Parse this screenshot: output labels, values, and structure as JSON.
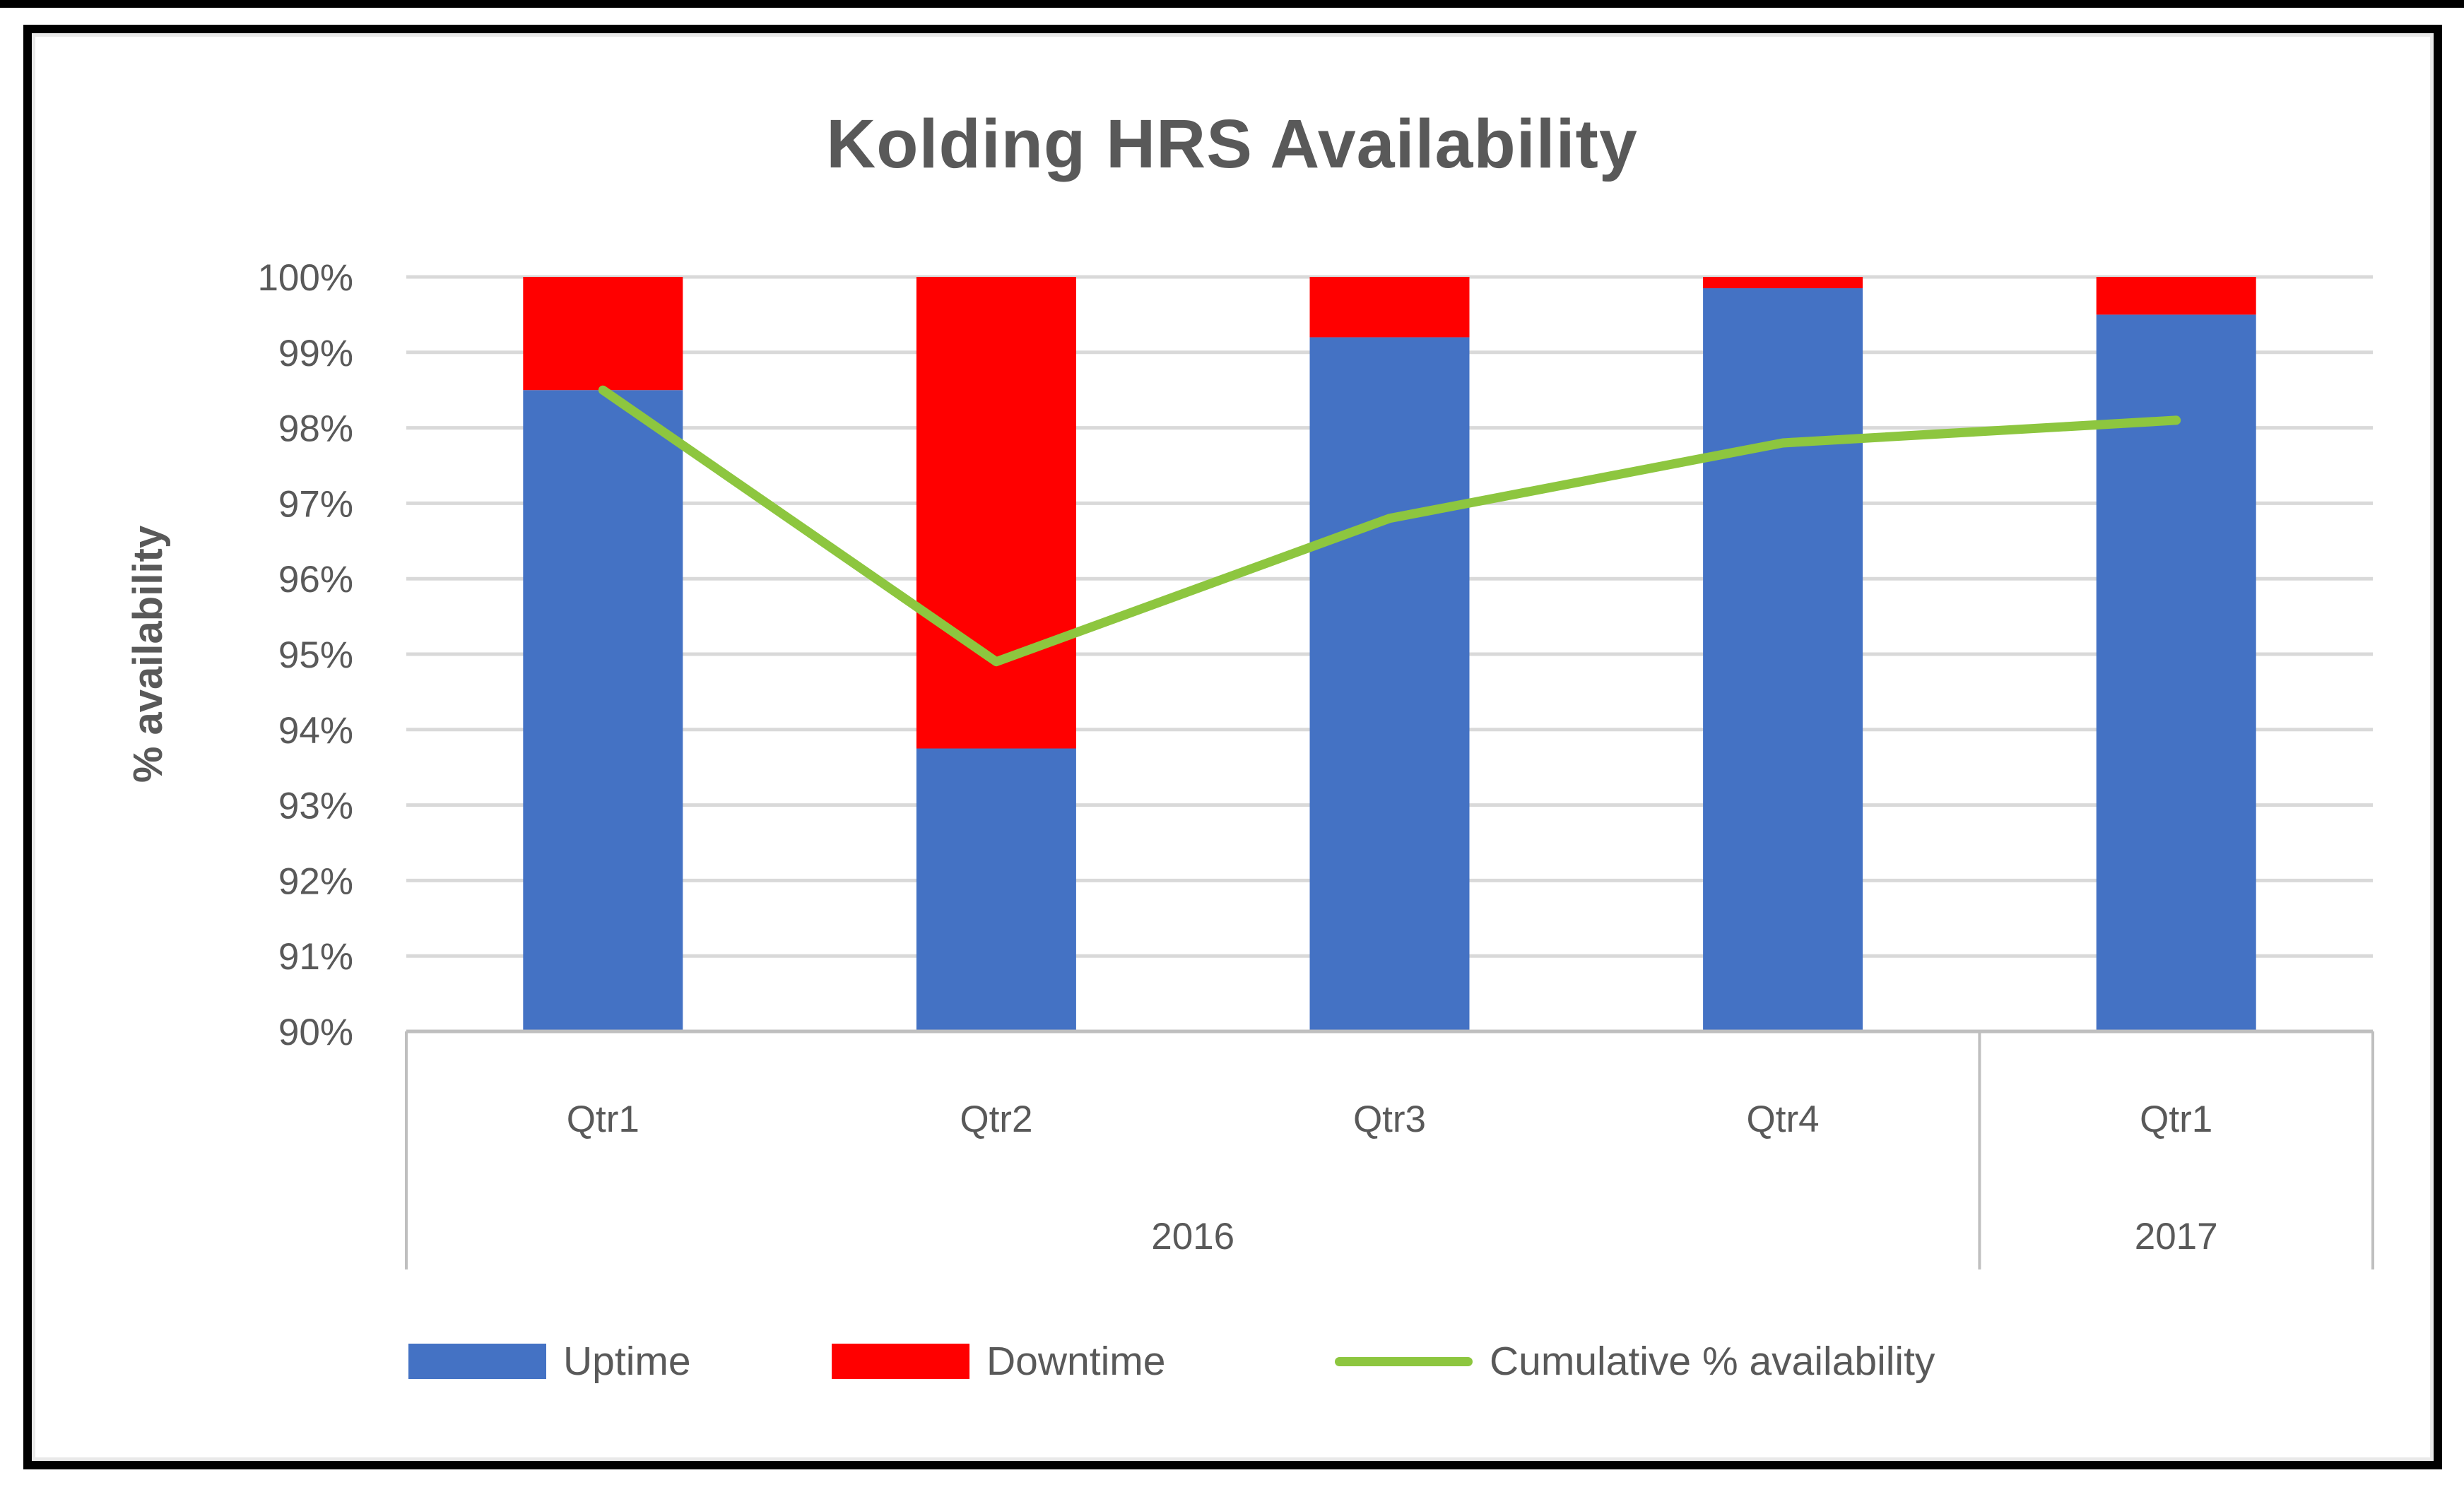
{
  "chart_data": {
    "type": "bar",
    "subtype": "stacked-bar-with-line",
    "title": "Kolding HRS Availability",
    "xlabel": "",
    "ylabel": "% availability",
    "ylim": [
      90,
      100
    ],
    "ytick_step": 1,
    "ytick_suffix": "%",
    "grid": true,
    "legend_position": "bottom",
    "categories": [
      "Qtr1",
      "Qtr2",
      "Qtr3",
      "Qtr4",
      "Qtr1"
    ],
    "year_groups": [
      {
        "label": "2016",
        "span": 4
      },
      {
        "label": "2017",
        "span": 1
      }
    ],
    "series": [
      {
        "name": "Uptime",
        "type": "bar",
        "stack": true,
        "color": "#4472C4",
        "values": [
          98.5,
          93.75,
          99.2,
          99.85,
          99.5
        ]
      },
      {
        "name": "Downtime",
        "type": "bar",
        "stack": true,
        "color": "#FF0000",
        "values": [
          1.5,
          6.25,
          0.8,
          0.15,
          0.5
        ]
      },
      {
        "name": "Cumulative % availability",
        "type": "line",
        "color": "#8DC63F",
        "values": [
          98.5,
          94.9,
          96.8,
          97.8,
          98.1
        ]
      }
    ],
    "colors": {
      "gridline": "#D9D9D9",
      "axis_line": "#BFBFBF",
      "text": "#595959",
      "title": "#595959",
      "frame_border": "#000000",
      "background": "#FFFFFF"
    }
  }
}
